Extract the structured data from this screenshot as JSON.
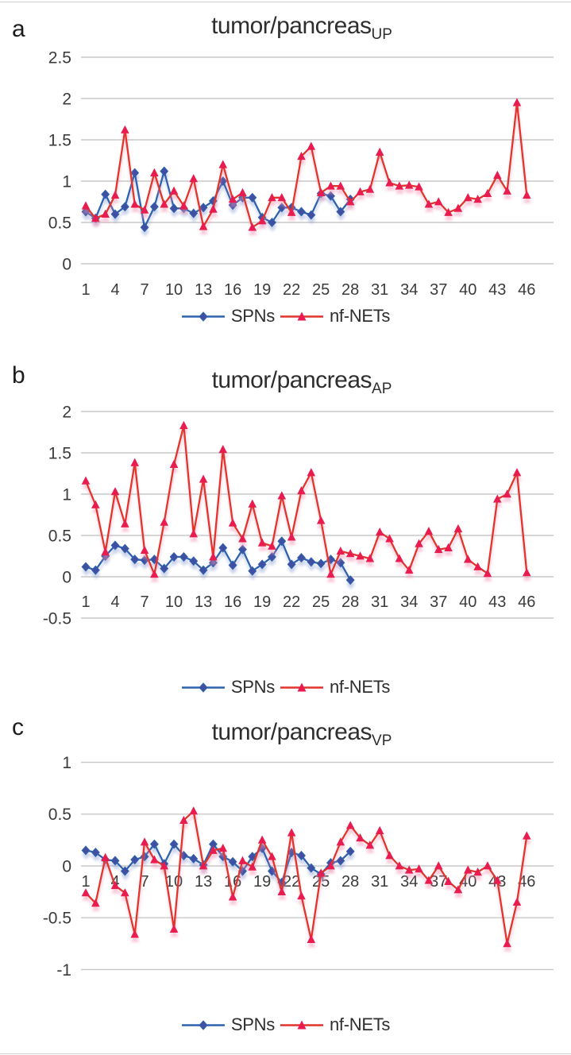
{
  "page": {
    "background": "#ffffff"
  },
  "panel_letters": [
    "a",
    "b",
    "c"
  ],
  "colors": {
    "background": "#ffffff",
    "grid": "#c8c8c8",
    "tick_text": "#3b3b3b",
    "spn_line": "#2e62ae",
    "spn_fill": "#4150a2",
    "net_line": "#e1342c",
    "net_fill": "#e91a4f",
    "spn_shadow": "#8e9fd4",
    "net_shadow": "#f591b2"
  },
  "chart_data": [
    {
      "type": "line",
      "panel": "a",
      "title": "tumor/pancreas",
      "title_sub": "UP",
      "x_range": [
        1,
        46
      ],
      "x_tick_labels": [
        1,
        4,
        7,
        10,
        13,
        16,
        19,
        22,
        25,
        28,
        31,
        34,
        37,
        40,
        43,
        46
      ],
      "y_ticks": [
        2.5,
        2,
        1.5,
        1,
        0.5,
        0
      ],
      "ylim": [
        0,
        2.5
      ],
      "grid": "horizontal",
      "legend_position": "bottom",
      "series": [
        {
          "name": "SPNs",
          "marker": "diamond",
          "color_key": "spn",
          "values": [
            0.63,
            0.55,
            0.84,
            0.6,
            0.69,
            1.1,
            0.44,
            0.69,
            1.12,
            0.67,
            0.67,
            0.61,
            0.68,
            0.76,
            1.0,
            0.71,
            0.8,
            0.8,
            0.56,
            0.5,
            0.68,
            0.68,
            0.63,
            0.59,
            0.85,
            0.82,
            0.63,
            0.78
          ]
        },
        {
          "name": "nf-NETs",
          "marker": "triangle",
          "color_key": "net",
          "values": [
            0.7,
            0.55,
            0.6,
            0.83,
            1.62,
            0.72,
            0.65,
            1.1,
            0.72,
            0.88,
            0.7,
            1.03,
            0.45,
            0.66,
            1.2,
            0.78,
            0.86,
            0.44,
            0.52,
            0.8,
            0.8,
            0.62,
            1.3,
            1.42,
            0.86,
            0.94,
            0.94,
            0.75,
            0.87,
            0.9,
            1.35,
            0.98,
            0.94,
            0.95,
            0.93,
            0.72,
            0.75,
            0.62,
            0.67,
            0.8,
            0.78,
            0.85,
            1.07,
            0.88,
            1.95,
            0.83
          ]
        }
      ]
    },
    {
      "type": "line",
      "panel": "b",
      "title": "tumor/pancreas",
      "title_sub": "AP",
      "x_range": [
        1,
        46
      ],
      "x_tick_labels": [
        1,
        4,
        7,
        10,
        13,
        16,
        19,
        22,
        25,
        28,
        31,
        34,
        37,
        40,
        43,
        46
      ],
      "y_ticks": [
        2,
        1.5,
        1,
        0.5,
        0,
        -0.5
      ],
      "ylim": [
        -0.5,
        2
      ],
      "grid": "horizontal",
      "legend_position": "bottom",
      "series": [
        {
          "name": "SPNs",
          "marker": "diamond",
          "color_key": "spn",
          "values": [
            0.12,
            0.08,
            0.25,
            0.38,
            0.34,
            0.21,
            0.2,
            0.21,
            0.1,
            0.24,
            0.24,
            0.19,
            0.08,
            0.17,
            0.35,
            0.14,
            0.33,
            0.07,
            0.15,
            0.24,
            0.43,
            0.15,
            0.23,
            0.18,
            0.16,
            0.21,
            0.17,
            -0.04
          ]
        },
        {
          "name": "nf-NETs",
          "marker": "triangle",
          "color_key": "net",
          "values": [
            1.16,
            0.87,
            0.3,
            1.03,
            0.64,
            1.38,
            0.32,
            0.03,
            0.66,
            1.36,
            1.83,
            0.52,
            1.18,
            0.24,
            1.54,
            0.65,
            0.46,
            0.88,
            0.41,
            0.37,
            0.98,
            0.48,
            1.04,
            1.26,
            0.68,
            0.03,
            0.31,
            0.28,
            0.25,
            0.22,
            0.54,
            0.46,
            0.22,
            0.08,
            0.4,
            0.55,
            0.33,
            0.35,
            0.58,
            0.21,
            0.12,
            0.04,
            0.94,
            1.0,
            1.26,
            0.05
          ]
        }
      ]
    },
    {
      "type": "line",
      "panel": "c",
      "title": "tumor/pancreas",
      "title_sub": "VP",
      "x_range": [
        1,
        46
      ],
      "x_tick_labels": [
        1,
        4,
        7,
        10,
        13,
        16,
        19,
        22,
        25,
        28,
        31,
        34,
        37,
        40,
        43,
        46
      ],
      "y_ticks": [
        1,
        0.5,
        0,
        -0.5,
        -1
      ],
      "ylim": [
        -1,
        1
      ],
      "grid": "horizontal",
      "legend_position": "bottom",
      "series": [
        {
          "name": "SPNs",
          "marker": "diamond",
          "color_key": "spn",
          "values": [
            0.15,
            0.13,
            0.06,
            0.05,
            -0.05,
            0.06,
            0.09,
            0.21,
            0.02,
            0.21,
            0.1,
            0.07,
            0.01,
            0.21,
            0.09,
            0.04,
            -0.05,
            0.09,
            0.17,
            -0.05,
            -0.16,
            0.13,
            0.1,
            -0.02,
            -0.08,
            0.03,
            0.05,
            0.14
          ]
        },
        {
          "name": "nf-NETs",
          "marker": "triangle",
          "color_key": "net",
          "values": [
            -0.26,
            -0.36,
            0.08,
            -0.19,
            -0.26,
            -0.66,
            0.23,
            0.06,
            0.0,
            -0.61,
            0.44,
            0.53,
            0.0,
            0.15,
            0.17,
            -0.3,
            0.05,
            -0.01,
            0.25,
            0.09,
            -0.25,
            0.32,
            -0.29,
            -0.71,
            -0.07,
            0.0,
            0.23,
            0.39,
            0.27,
            0.2,
            0.34,
            0.1,
            0.0,
            -0.04,
            -0.03,
            -0.14,
            0.0,
            -0.15,
            -0.23,
            -0.04,
            -0.06,
            0.0,
            -0.14,
            -0.75,
            -0.35,
            0.29
          ]
        }
      ]
    }
  ]
}
